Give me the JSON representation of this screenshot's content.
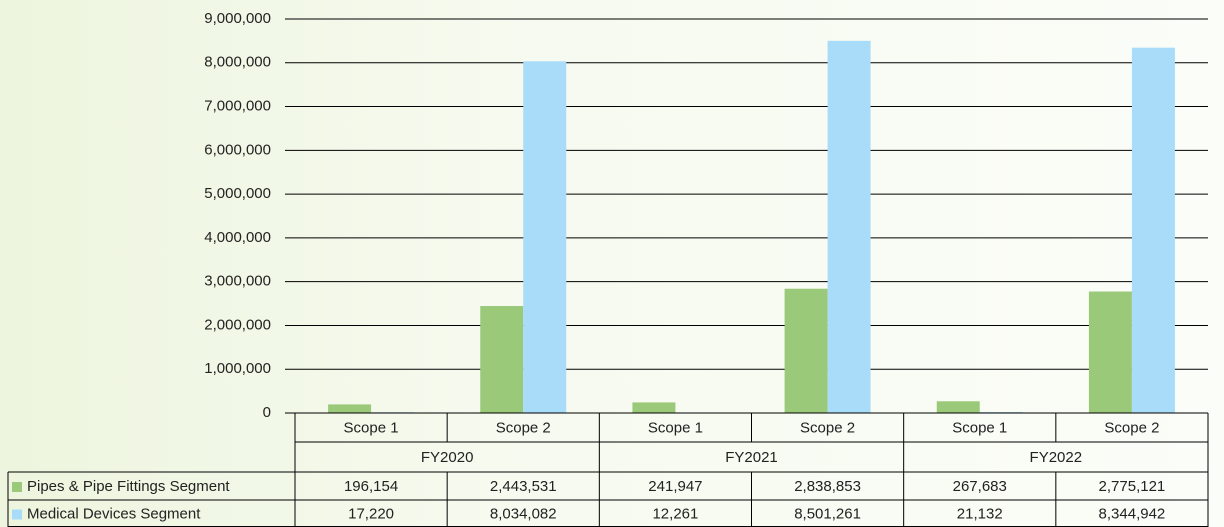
{
  "chart_data": {
    "type": "bar",
    "categories": [
      "Scope 1",
      "Scope 2",
      "Scope 1",
      "Scope 2",
      "Scope 1",
      "Scope 2"
    ],
    "groups": [
      "FY2020",
      "FY2021",
      "FY2022"
    ],
    "series": [
      {
        "name": "Pipes & Pipe Fittings Segment",
        "color": "#9bc97a",
        "values": [
          196154,
          2443531,
          241947,
          2838853,
          267683,
          2775121
        ],
        "value_labels": [
          "196,154",
          "2,443,531",
          "241,947",
          "2,838,853",
          "267,683",
          "2,775,121"
        ]
      },
      {
        "name": "Medical Devices Segment",
        "color": "#a9dcf9",
        "values": [
          17220,
          8034082,
          12261,
          8501261,
          21132,
          8344942
        ],
        "value_labels": [
          "17,220",
          "8,034,082",
          "12,261",
          "8,501,261",
          "21,132",
          "8,344,942"
        ]
      }
    ],
    "ylim": [
      0,
      9000000
    ],
    "yticks": [
      0,
      {
        "value": 1000000,
        "label": "1,000,000"
      },
      {
        "value": 2000000,
        "label": "2,000,000"
      },
      {
        "value": 3000000,
        "label": "3,000,000"
      },
      {
        "value": 4000000,
        "label": "4,000,000"
      },
      {
        "value": 5000000,
        "label": "5,000,000"
      },
      {
        "value": 6000000,
        "label": "6,000,000"
      },
      {
        "value": 7000000,
        "label": "7,000,000"
      },
      {
        "value": 8000000,
        "label": "8,000,000"
      },
      {
        "value": 9000000,
        "label": "9,000,000"
      }
    ],
    "grid": true
  }
}
